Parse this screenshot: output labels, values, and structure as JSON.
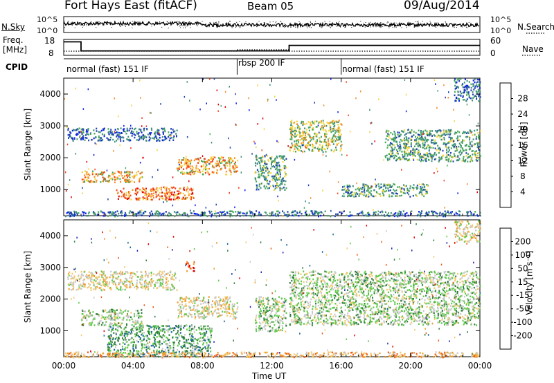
{
  "header": {
    "station": "Fort Hays East (fitACF)",
    "beam": "Beam 05",
    "date": "09/Aug/2014"
  },
  "labels": {
    "nsky": "N.Sky",
    "nsearch": "N.Search",
    "freq_line1": "Freq.",
    "freq_line2": "[MHz]",
    "nave": "Nave",
    "cpid": "CPID",
    "xlabel": "Time UT",
    "range_label": "Slant Range [km]",
    "power_label": "Power [dB]",
    "velocity_label": "Velocity [m s⁻¹]"
  },
  "top_strips": {
    "noise_ticks_left": [
      "10^5",
      "10^0"
    ],
    "noise_ticks_right": [
      "10^5",
      "10^0"
    ],
    "freq_ticks_left": [
      "18",
      "8"
    ],
    "nave_ticks_right": [
      "60",
      "0"
    ],
    "freq_steps": [
      {
        "start": 0.0,
        "end": 1.0,
        "freq": 16.5
      },
      {
        "start": 1.0,
        "end": 13.0,
        "freq": 10.8
      },
      {
        "start": 13.0,
        "end": 24.0,
        "freq": 14.2
      }
    ],
    "cpid_segments": [
      {
        "start": 0.0,
        "end": 10.0,
        "label": "normal (fast) 151 IF"
      },
      {
        "start": 10.0,
        "end": 16.0,
        "label": "rbsp 200 IF"
      },
      {
        "start": 16.0,
        "end": 24.0,
        "label": "normal (fast) 151 IF"
      }
    ]
  },
  "colors": {
    "white": "#ffffff",
    "black": "#000000"
  },
  "chart_data": [
    {
      "type": "heatmap",
      "name": "power",
      "x_range_hours": [
        0,
        24
      ],
      "y_range_km": [
        180,
        4500
      ],
      "x_ticks": [
        "00:00",
        "04:00",
        "08:00",
        "12:00",
        "16:00",
        "20:00",
        "00:00"
      ],
      "y_ticks": [
        "1000",
        "2000",
        "3000",
        "4000"
      ],
      "colorbar": {
        "labels": [
          "28",
          "24",
          "20",
          "16",
          "12",
          "8",
          "4"
        ],
        "colors": [
          "#e30000",
          "#f4421a",
          "#f58b22",
          "#f2d33b",
          "#47a85a",
          "#3e8f79",
          "#1f3fb3",
          "#0c1cf0"
        ]
      },
      "regions": [
        {
          "t0": 0.2,
          "t1": 6.5,
          "r0": 2550,
          "r1": 2950,
          "level": 2
        },
        {
          "t0": 1.0,
          "t1": 4.5,
          "r0": 1250,
          "r1": 1600,
          "level": 5
        },
        {
          "t0": 3.0,
          "t1": 7.5,
          "r0": 700,
          "r1": 1100,
          "level": 6
        },
        {
          "t0": 6.5,
          "t1": 10.0,
          "r0": 1500,
          "r1": 2050,
          "level": 5
        },
        {
          "t0": 11.0,
          "t1": 12.8,
          "r0": 1000,
          "r1": 2100,
          "level": 3
        },
        {
          "t0": 13.0,
          "t1": 16.0,
          "r0": 2200,
          "r1": 3200,
          "level": 4
        },
        {
          "t0": 16.0,
          "t1": 21.0,
          "r0": 800,
          "r1": 1200,
          "level": 3
        },
        {
          "t0": 18.5,
          "t1": 24.0,
          "r0": 1900,
          "r1": 2900,
          "level": 3
        },
        {
          "t0": 22.5,
          "t1": 24.0,
          "r0": 3800,
          "r1": 4500,
          "level": 2
        },
        {
          "t0": 0.0,
          "t1": 24.0,
          "r0": 180,
          "r1": 350,
          "level": 2
        }
      ]
    },
    {
      "type": "heatmap",
      "name": "velocity",
      "x_range_hours": [
        0,
        24
      ],
      "y_range_km": [
        180,
        4500
      ],
      "x_ticks": [
        "00:00",
        "04:00",
        "08:00",
        "12:00",
        "16:00",
        "20:00",
        "00:00"
      ],
      "y_ticks": [
        "1000",
        "2000",
        "3000",
        "4000"
      ],
      "colorbar": {
        "labels": [
          "200",
          "100",
          "50",
          "15",
          "-15",
          "-50",
          "-100",
          "-200"
        ],
        "colors": [
          "#1b24b7",
          "#15659c",
          "#2f7d3e",
          "#5ec94a",
          "#c8c8c8",
          "#f2c76b",
          "#f09a2a",
          "#f05a1a",
          "#e30000"
        ]
      },
      "regions": [
        {
          "t0": 0.2,
          "t1": 6.5,
          "r0": 2300,
          "r1": 2900,
          "level": 5
        },
        {
          "t0": 1.0,
          "t1": 4.5,
          "r0": 1200,
          "r1": 1700,
          "level": 4
        },
        {
          "t0": 2.5,
          "t1": 8.5,
          "r0": 200,
          "r1": 1200,
          "level": 3
        },
        {
          "t0": 6.5,
          "t1": 10.0,
          "r0": 1400,
          "r1": 2100,
          "level": 5
        },
        {
          "t0": 11.0,
          "t1": 12.8,
          "r0": 1000,
          "r1": 2100,
          "level": 4
        },
        {
          "t0": 13.0,
          "t1": 24.0,
          "r0": 1200,
          "r1": 2900,
          "level": 4
        },
        {
          "t0": 22.5,
          "t1": 24.0,
          "r0": 3800,
          "r1": 4500,
          "level": 5
        },
        {
          "t0": 7.0,
          "t1": 7.5,
          "r0": 2900,
          "r1": 3200,
          "level": 8
        },
        {
          "t0": 0.0,
          "t1": 24.0,
          "r0": 180,
          "r1": 350,
          "level": 6
        }
      ]
    }
  ]
}
